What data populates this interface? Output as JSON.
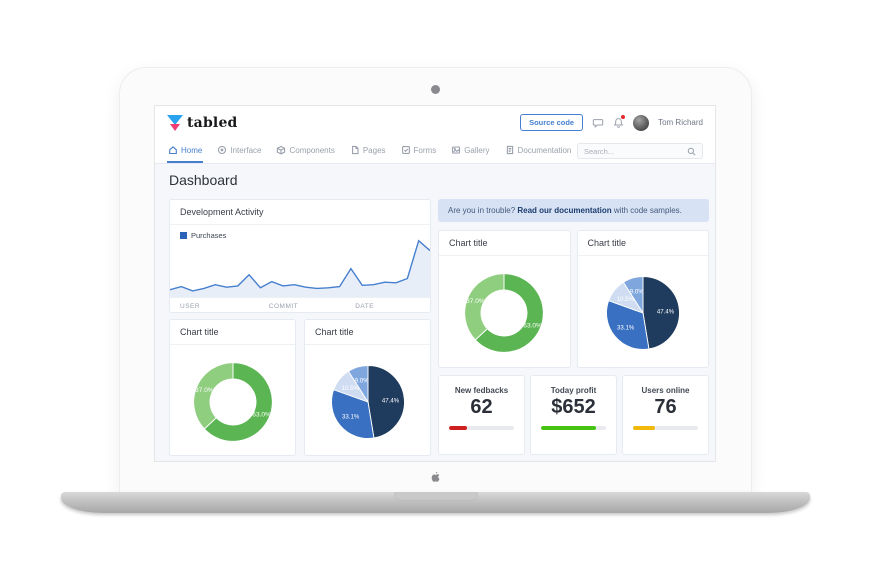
{
  "header": {
    "logo_text": "tabled",
    "source_code_label": "Source code",
    "user_name": "Tom Richard"
  },
  "nav": {
    "items": [
      {
        "label": "Home",
        "icon": "home-icon",
        "active": true
      },
      {
        "label": "Interface",
        "icon": "interface-icon",
        "active": false
      },
      {
        "label": "Components",
        "icon": "components-icon",
        "active": false
      },
      {
        "label": "Pages",
        "icon": "pages-icon",
        "active": false
      },
      {
        "label": "Forms",
        "icon": "forms-icon",
        "active": false
      },
      {
        "label": "Gallery",
        "icon": "gallery-icon",
        "active": false
      },
      {
        "label": "Documentation",
        "icon": "documentation-icon",
        "active": false
      }
    ],
    "search_placeholder": "Search..."
  },
  "main": {
    "title": "Dashboard",
    "alert": {
      "prefix": "Are you in trouble? ",
      "link": "Read our documentation",
      "suffix": " with code samples."
    },
    "dev_activity": {
      "title": "Development Activity",
      "legend": "Purchases",
      "columns": [
        "USER",
        "COMMIT",
        "DATE"
      ]
    },
    "stats": [
      {
        "label": "New fedbacks",
        "value": "62",
        "progress": 28,
        "color": "#cd201f"
      },
      {
        "label": "Today profit",
        "value": "$652",
        "progress": 85,
        "color": "#46c212"
      },
      {
        "label": "Users online",
        "value": "76",
        "progress": 34,
        "color": "#f0b90c"
      }
    ]
  },
  "colors": {
    "accent_blue": "#467fcf",
    "body_background": "#f5f7fb",
    "alert_background": "#d7e3f5"
  },
  "chart_data": [
    {
      "type": "area",
      "title": "Development Activity",
      "legend_position": "top-left",
      "grid": false,
      "ylim": [
        0,
        100
      ],
      "series": [
        {
          "name": "Purchases",
          "color": "#467fcf",
          "fill": "#e8eef8",
          "values": [
            7,
            12,
            5,
            9,
            15,
            11,
            13,
            31,
            10,
            20,
            13,
            15,
            11,
            9,
            10,
            12,
            41,
            14,
            15,
            19,
            18,
            25,
            86,
            70
          ]
        }
      ]
    },
    {
      "type": "pie",
      "variant": "donut",
      "title": "Chart title",
      "slices": [
        {
          "label": "63.0%",
          "value": 63.0,
          "color": "#5bb552"
        },
        {
          "label": "37.0%",
          "value": 37.0,
          "color": "#8fce7f"
        }
      ]
    },
    {
      "type": "pie",
      "variant": "pie",
      "title": "Chart title",
      "slices": [
        {
          "label": "47.4%",
          "value": 47.4,
          "color": "#1f3b5d"
        },
        {
          "label": "33.1%",
          "value": 33.1,
          "color": "#3a70c2"
        },
        {
          "label": "10.5%",
          "value": 10.5,
          "color": "#cfdcf1"
        },
        {
          "label": "9.0%",
          "value": 9.0,
          "color": "#7fa7de"
        }
      ]
    },
    {
      "type": "pie",
      "variant": "donut",
      "title": "Chart title",
      "slices": [
        {
          "label": "63.0%",
          "value": 63.0,
          "color": "#5bb552"
        },
        {
          "label": "37.0%",
          "value": 37.0,
          "color": "#8fce7f"
        }
      ]
    },
    {
      "type": "pie",
      "variant": "pie",
      "title": "Chart title",
      "slices": [
        {
          "label": "47.4%",
          "value": 47.4,
          "color": "#1f3b5d"
        },
        {
          "label": "33.1%",
          "value": 33.1,
          "color": "#3a70c2"
        },
        {
          "label": "10.5%",
          "value": 10.5,
          "color": "#cfdcf1"
        },
        {
          "label": "9.0%",
          "value": 9.0,
          "color": "#7fa7de"
        }
      ]
    }
  ]
}
